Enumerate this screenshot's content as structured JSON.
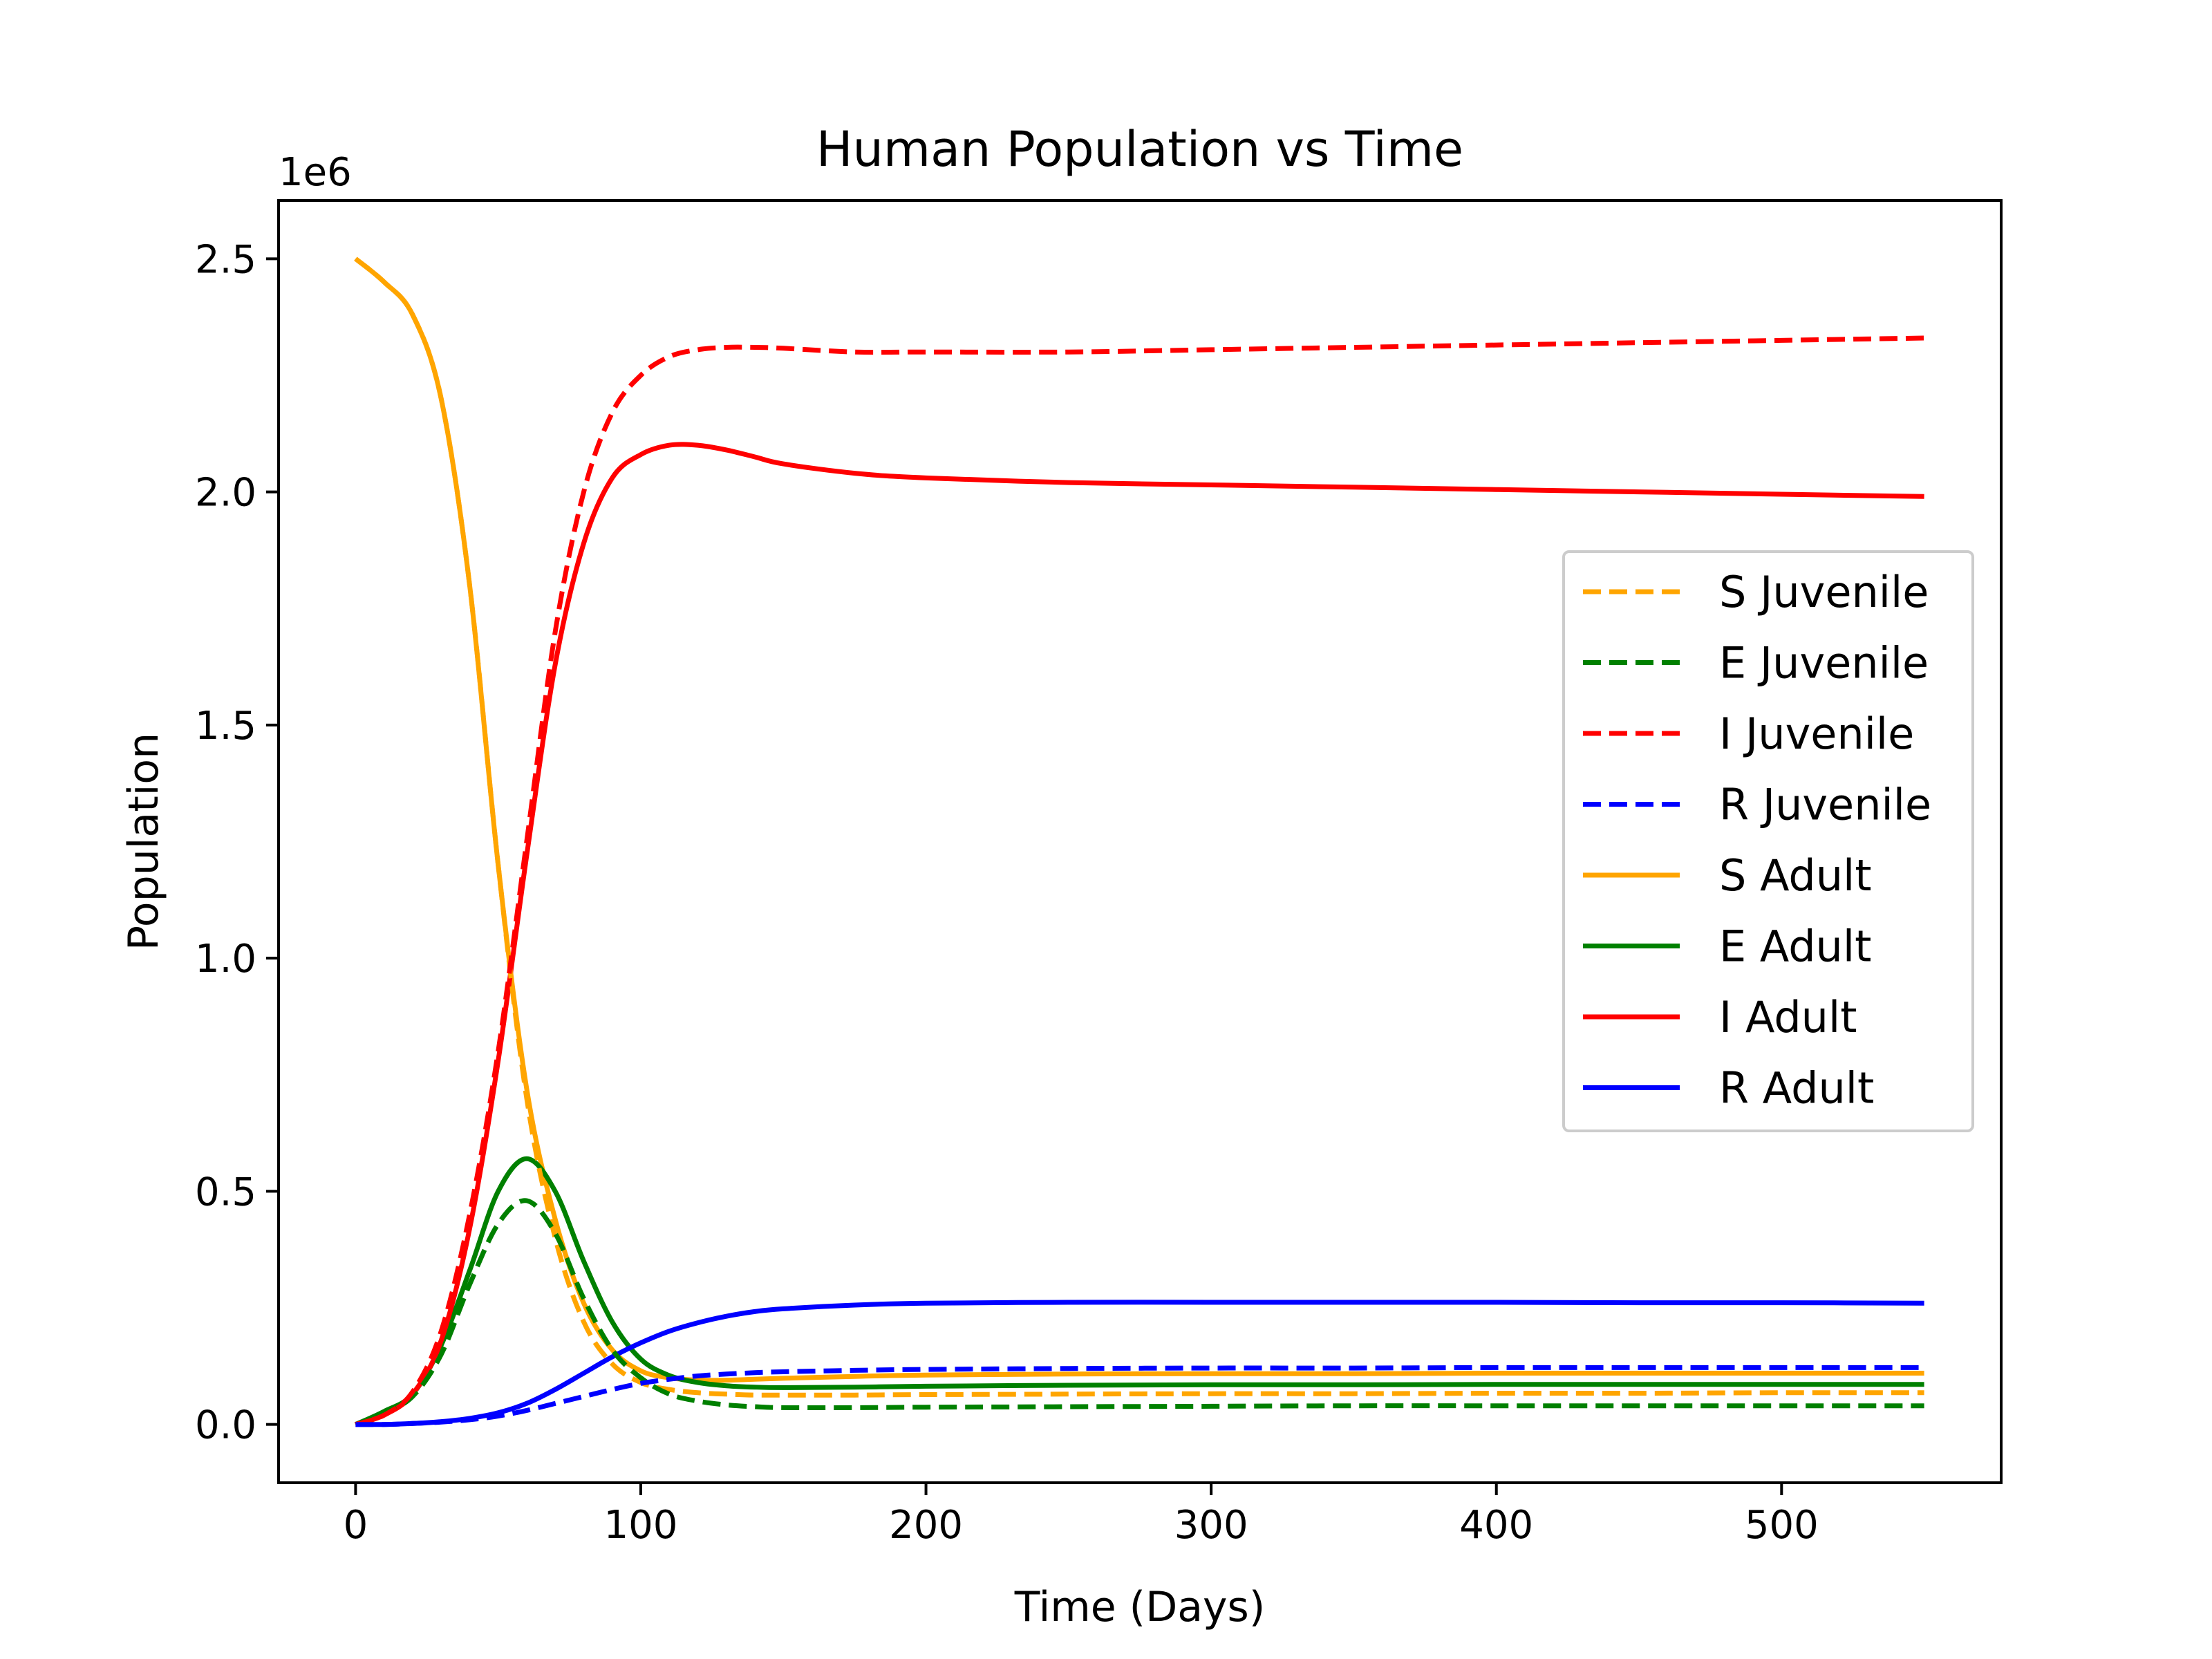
{
  "chart_data": {
    "type": "line",
    "title": "Human Population vs Time",
    "xlabel": "Time (Days)",
    "ylabel": "Population",
    "y_offset_label": "1e6",
    "xlim": [
      -27,
      577
    ],
    "ylim": [
      -0.125,
      2.625
    ],
    "xticks": [
      0,
      100,
      200,
      300,
      400,
      500
    ],
    "yticks": [
      0.0,
      0.5,
      1.0,
      1.5,
      2.0,
      2.5
    ],
    "ytick_labels": [
      "0.0",
      "0.5",
      "1.0",
      "1.5",
      "2.0",
      "2.5"
    ],
    "grid": false,
    "legend_position": "center-right",
    "x": [
      0,
      10,
      20,
      30,
      40,
      50,
      60,
      70,
      80,
      90,
      100,
      110,
      120,
      130,
      140,
      150,
      175,
      200,
      250,
      300,
      350,
      400,
      450,
      500,
      550
    ],
    "series": [
      {
        "name": "S Juvenile",
        "color": "#ffa500",
        "dash": true,
        "values": [
          2.5,
          2.45,
          2.38,
          2.2,
          1.8,
          1.2,
          0.7,
          0.4,
          0.22,
          0.13,
          0.09,
          0.075,
          0.068,
          0.065,
          0.063,
          0.063,
          0.063,
          0.064,
          0.065,
          0.066,
          0.066,
          0.067,
          0.067,
          0.068,
          0.068
        ]
      },
      {
        "name": "E Juvenile",
        "color": "#008000",
        "dash": true,
        "values": [
          0.0,
          0.025,
          0.06,
          0.15,
          0.3,
          0.43,
          0.48,
          0.41,
          0.27,
          0.16,
          0.1,
          0.065,
          0.05,
          0.042,
          0.038,
          0.036,
          0.036,
          0.037,
          0.038,
          0.039,
          0.04,
          0.04,
          0.04,
          0.04,
          0.04
        ]
      },
      {
        "name": "I Juvenile",
        "color": "#ff0000",
        "dash": true,
        "values": [
          0.0,
          0.02,
          0.07,
          0.2,
          0.45,
          0.8,
          1.25,
          1.7,
          2.0,
          2.17,
          2.25,
          2.29,
          2.305,
          2.31,
          2.31,
          2.308,
          2.3,
          2.3,
          2.3,
          2.305,
          2.31,
          2.315,
          2.32,
          2.325,
          2.33
        ]
      },
      {
        "name": "R Juvenile",
        "color": "#0000ff",
        "dash": true,
        "values": [
          0.0,
          0.0,
          0.002,
          0.005,
          0.01,
          0.018,
          0.03,
          0.045,
          0.06,
          0.075,
          0.088,
          0.097,
          0.104,
          0.108,
          0.111,
          0.113,
          0.116,
          0.118,
          0.12,
          0.121,
          0.121,
          0.122,
          0.122,
          0.122,
          0.122
        ]
      },
      {
        "name": "S Adult",
        "color": "#ffa500",
        "dash": false,
        "values": [
          2.5,
          2.45,
          2.38,
          2.2,
          1.8,
          1.2,
          0.72,
          0.44,
          0.26,
          0.16,
          0.115,
          0.1,
          0.095,
          0.095,
          0.097,
          0.099,
          0.103,
          0.106,
          0.108,
          0.109,
          0.109,
          0.11,
          0.11,
          0.11,
          0.11
        ]
      },
      {
        "name": "E Adult",
        "color": "#008000",
        "dash": false,
        "values": [
          0.0,
          0.028,
          0.065,
          0.17,
          0.33,
          0.5,
          0.57,
          0.5,
          0.35,
          0.22,
          0.14,
          0.105,
          0.09,
          0.083,
          0.08,
          0.079,
          0.08,
          0.082,
          0.084,
          0.085,
          0.085,
          0.086,
          0.086,
          0.086,
          0.086
        ]
      },
      {
        "name": "I Adult",
        "color": "#ff0000",
        "dash": false,
        "values": [
          0.0,
          0.02,
          0.065,
          0.18,
          0.42,
          0.78,
          1.22,
          1.63,
          1.89,
          2.03,
          2.08,
          2.1,
          2.1,
          2.09,
          2.075,
          2.06,
          2.04,
          2.03,
          2.02,
          2.015,
          2.01,
          2.005,
          2.0,
          1.995,
          1.99
        ]
      },
      {
        "name": "R Adult",
        "color": "#0000ff",
        "dash": false,
        "values": [
          0.0,
          0.0,
          0.002,
          0.006,
          0.013,
          0.025,
          0.045,
          0.075,
          0.11,
          0.145,
          0.175,
          0.2,
          0.218,
          0.232,
          0.242,
          0.248,
          0.256,
          0.26,
          0.262,
          0.262,
          0.262,
          0.262,
          0.261,
          0.261,
          0.26
        ]
      }
    ]
  }
}
